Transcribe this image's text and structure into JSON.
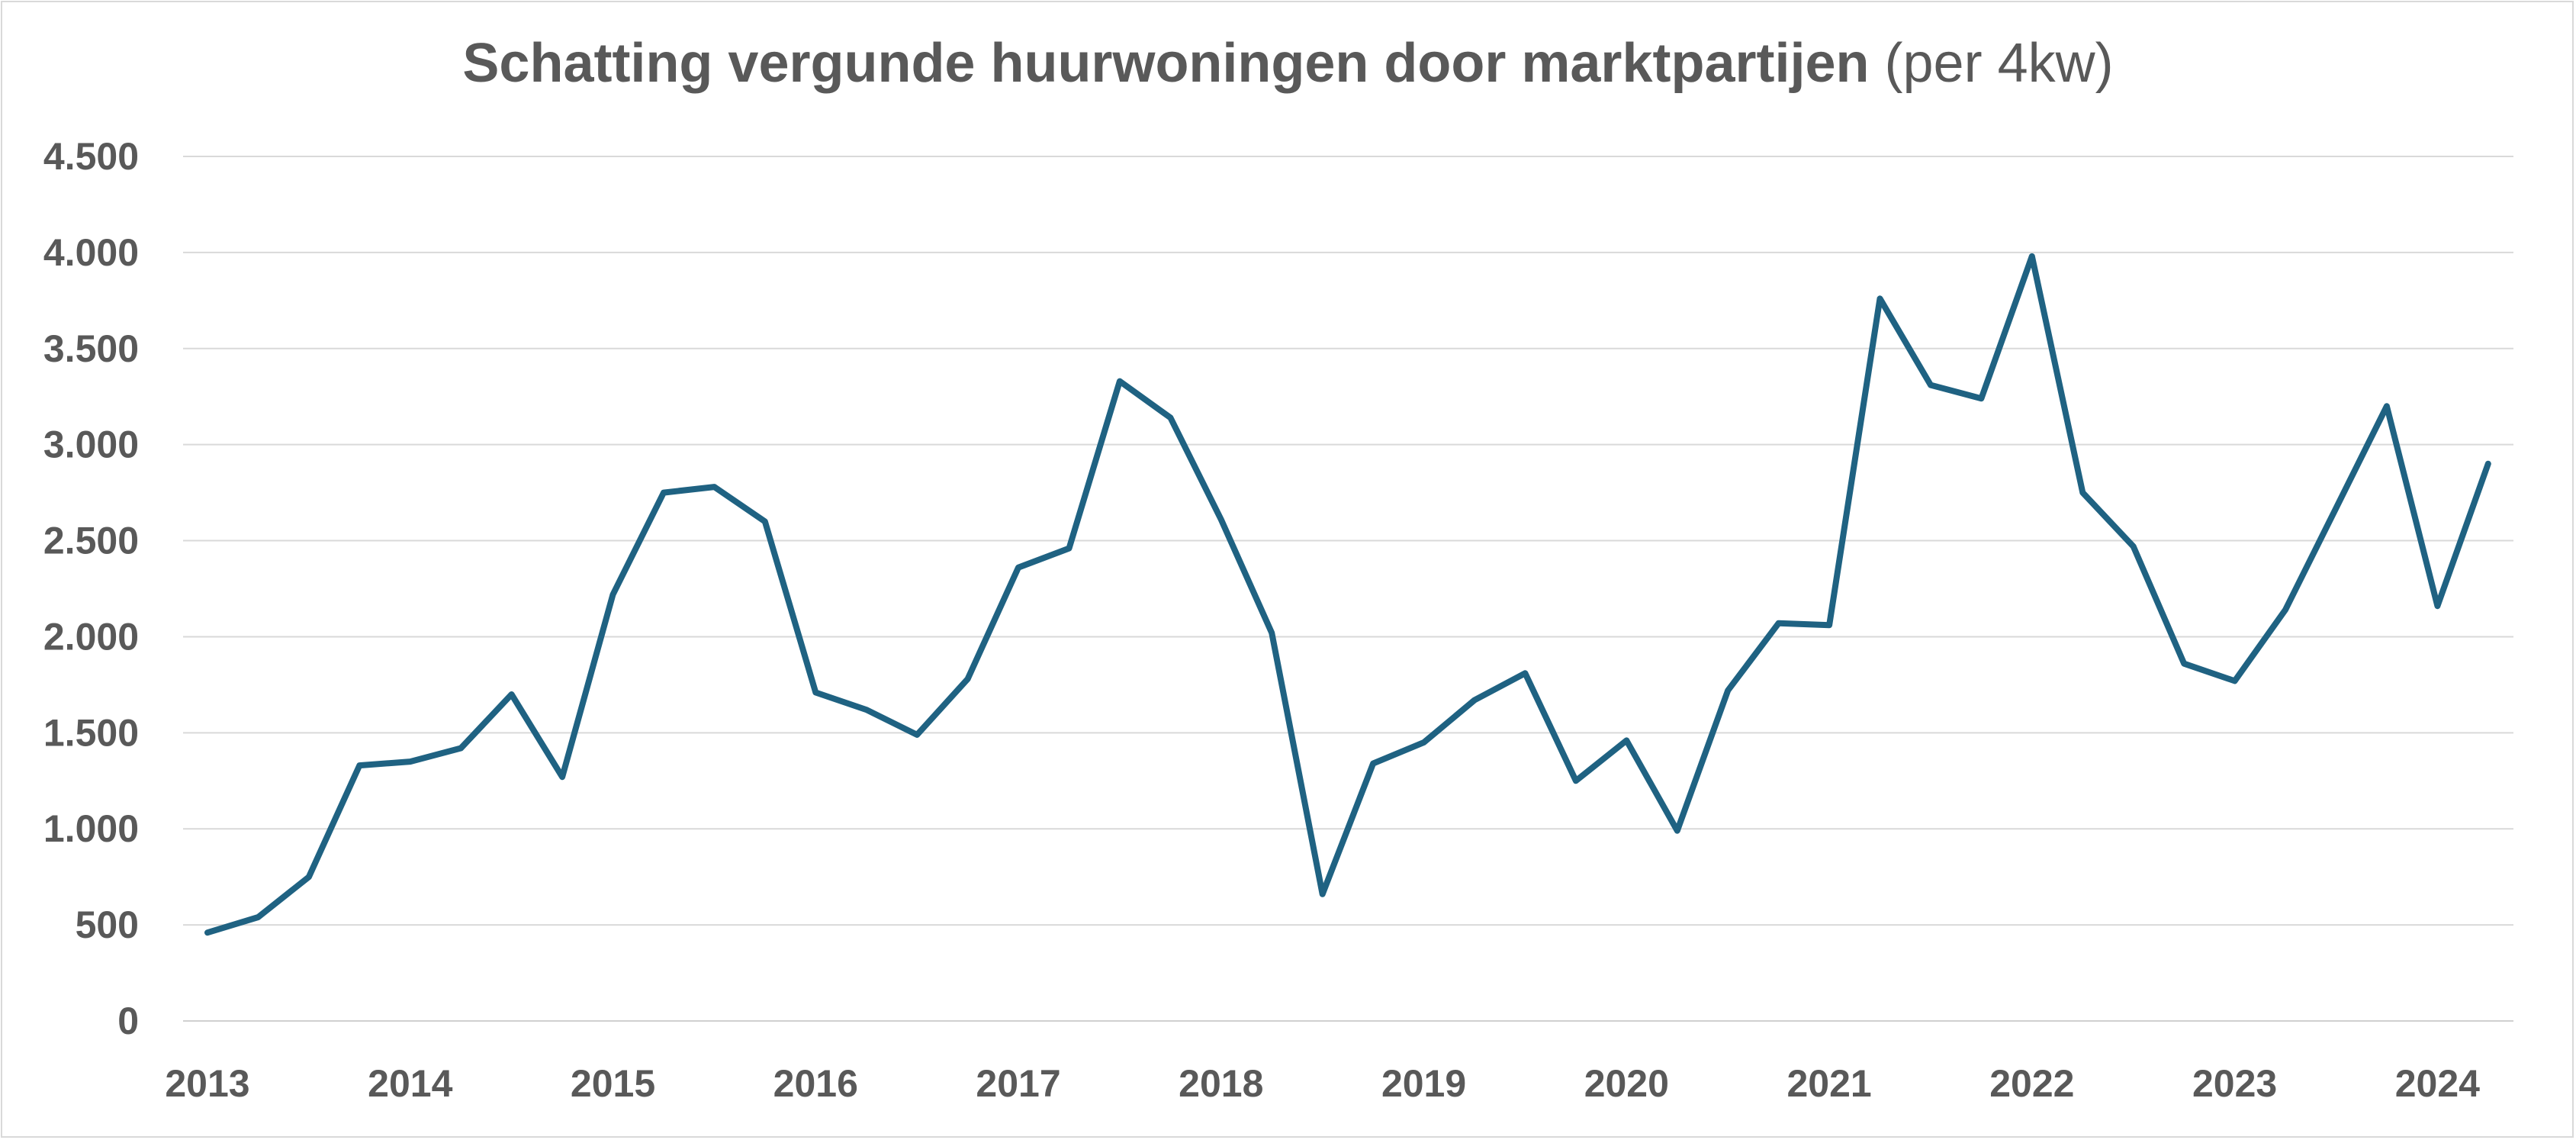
{
  "chart_data": {
    "type": "line",
    "title": "Schatting vergunde huurwoningen door marktpartijen",
    "subtitle": "(per 4kw)",
    "xlabel": "",
    "ylabel": "",
    "ylim": [
      0,
      4500
    ],
    "y_ticks": [
      {
        "value": 0,
        "label": "0"
      },
      {
        "value": 500,
        "label": "500"
      },
      {
        "value": 1000,
        "label": "1.000"
      },
      {
        "value": 1500,
        "label": "1.500"
      },
      {
        "value": 2000,
        "label": "2.000"
      },
      {
        "value": 2500,
        "label": "2.500"
      },
      {
        "value": 3000,
        "label": "3.000"
      },
      {
        "value": 3500,
        "label": "3.500"
      },
      {
        "value": 4000,
        "label": "4.000"
      },
      {
        "value": 4500,
        "label": "4.500"
      }
    ],
    "x_ticks": [
      "2013",
      "2014",
      "2015",
      "2016",
      "2017",
      "2018",
      "2019",
      "2020",
      "2021",
      "2022",
      "2023",
      "2024"
    ],
    "grid": true,
    "line_color": "#1f6282",
    "series": [
      {
        "values": [
          460,
          540,
          750,
          1330,
          1350,
          1420,
          1700,
          1270,
          2220,
          2750,
          2780,
          2600,
          1710,
          1620,
          1490,
          1780,
          2360,
          2460,
          3330,
          3140,
          2610,
          2020,
          660,
          1340,
          1450,
          1670,
          1810,
          1250,
          1460,
          990,
          1720,
          2070,
          2060,
          3760,
          3310,
          3240,
          3980,
          2750,
          2470,
          1860,
          1770,
          2140,
          2670,
          3200,
          2160,
          2900
        ]
      }
    ]
  }
}
